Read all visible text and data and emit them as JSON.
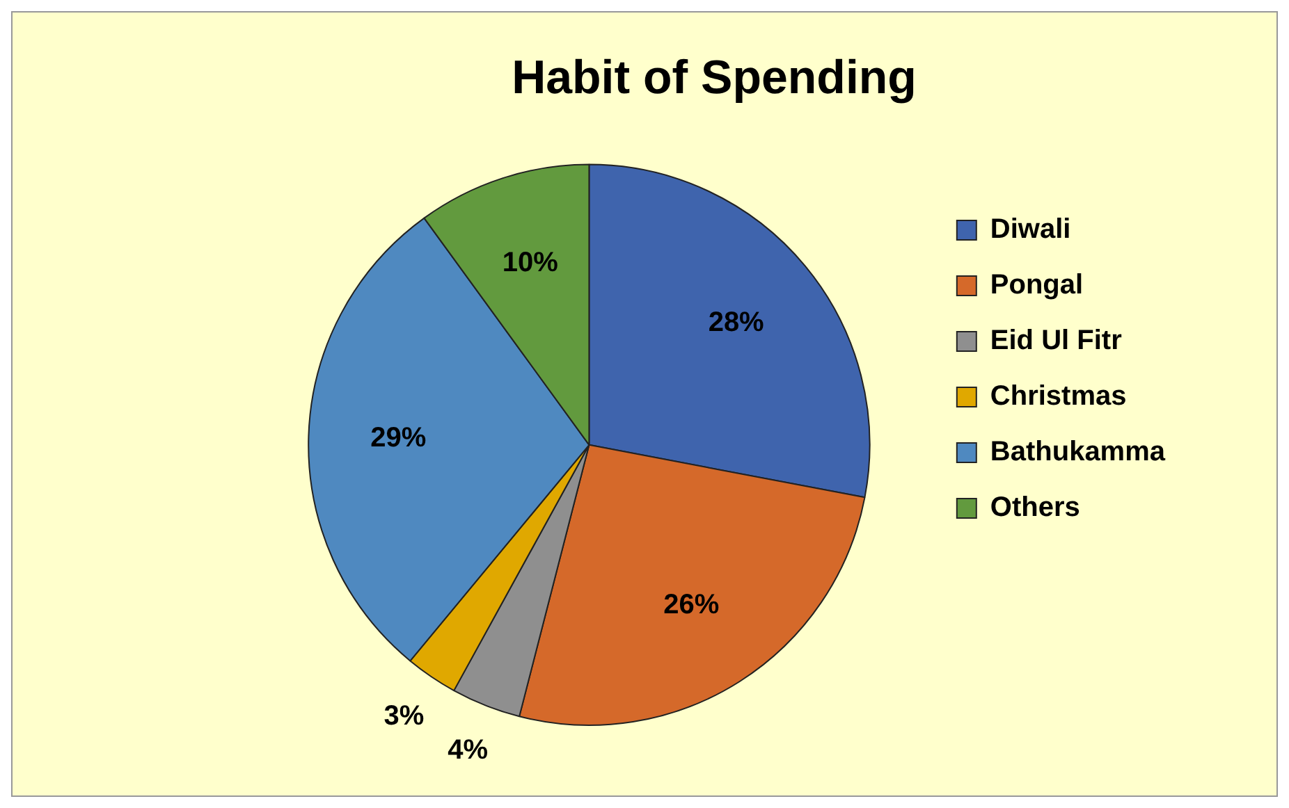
{
  "chart_data": {
    "type": "pie",
    "title": "Habit of Spending",
    "categories": [
      "Diwali",
      "Pongal",
      "Eid Ul Fitr",
      "Christmas",
      "Bathukamma",
      "Others"
    ],
    "values": [
      28,
      26,
      4,
      3,
      29,
      10
    ],
    "colors": [
      "#3f64ad",
      "#d5692a",
      "#8f8f8f",
      "#e0a800",
      "#4f89c0",
      "#629a3e"
    ],
    "value_labels": [
      "28%",
      "26%",
      "4%",
      "3%",
      "29%",
      "10%"
    ],
    "legend": "right"
  }
}
